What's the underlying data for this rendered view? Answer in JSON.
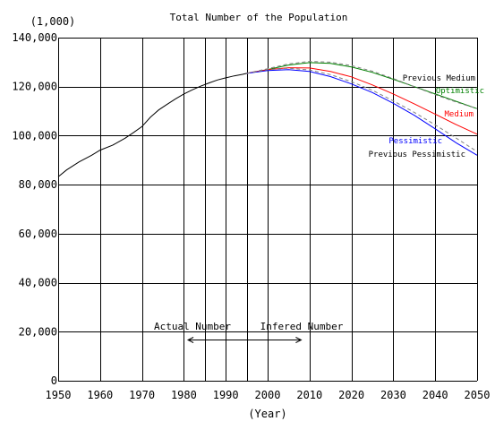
{
  "chart_data": {
    "type": "line",
    "title": "Total Number of the Population",
    "unit_label": "(1,000)",
    "xlabel": "(Year)",
    "ylabel": "",
    "xlim": [
      1950,
      2050
    ],
    "ylim": [
      0,
      140000
    ],
    "x_ticks": [
      1950,
      1960,
      1970,
      1980,
      1990,
      2000,
      2010,
      2020,
      2030,
      2040,
      2050
    ],
    "y_ticks": [
      0,
      20000,
      40000,
      60000,
      80000,
      100000,
      120000,
      140000
    ],
    "y_tick_labels": [
      "0",
      "20,000",
      "40,000",
      "60,000",
      "80,000",
      "100,000",
      "120,000",
      "140,000"
    ],
    "extra_vertical_gridlines": [
      1985,
      1995
    ],
    "grid": true,
    "series": [
      {
        "name": "Actual",
        "color": "#000000",
        "dashed": false,
        "x": [
          1950,
          1952,
          1955,
          1958,
          1960,
          1963,
          1966,
          1968,
          1970,
          1972,
          1974,
          1976,
          1978,
          1980,
          1982,
          1984,
          1986,
          1988,
          1990,
          1992,
          1994,
          1995
        ],
        "y": [
          83200,
          86000,
          89300,
          92000,
          94100,
          96100,
          99000,
          101300,
          103700,
          107500,
          110500,
          112800,
          115000,
          117000,
          118700,
          120200,
          121500,
          122700,
          123600,
          124400,
          125000,
          125400
        ]
      },
      {
        "name": "Optimistic",
        "color": "#008000",
        "dashed": false,
        "x": [
          1995,
          2000,
          2005,
          2010,
          2015,
          2020,
          2025,
          2030,
          2035,
          2040,
          2045,
          2050
        ],
        "y": [
          125400,
          127000,
          128800,
          129800,
          129500,
          128000,
          125800,
          123000,
          120000,
          117000,
          114000,
          111000
        ]
      },
      {
        "name": "Previous Medium",
        "color": "#808080",
        "dashed": true,
        "x": [
          1995,
          2000,
          2005,
          2010,
          2015,
          2020,
          2025,
          2030,
          2035,
          2040,
          2045,
          2050
        ],
        "y": [
          125400,
          127300,
          129300,
          130300,
          130000,
          128600,
          126300,
          123300,
          120000,
          116700,
          113700,
          111000
        ]
      },
      {
        "name": "Medium",
        "color": "#ff0000",
        "dashed": false,
        "x": [
          1995,
          2000,
          2005,
          2010,
          2015,
          2020,
          2025,
          2030,
          2035,
          2040,
          2045,
          2050
        ],
        "y": [
          125400,
          126900,
          127700,
          127600,
          126200,
          124000,
          120700,
          117000,
          113000,
          108800,
          104500,
          100600
        ]
      },
      {
        "name": "Pessimistic",
        "color": "#0000ff",
        "dashed": false,
        "x": [
          1995,
          2000,
          2005,
          2010,
          2015,
          2020,
          2025,
          2030,
          2035,
          2040,
          2045,
          2050
        ],
        "y": [
          125400,
          126600,
          126900,
          126200,
          124100,
          121100,
          117600,
          113200,
          108300,
          102800,
          97100,
          92000
        ]
      },
      {
        "name": "Previous Pessimistic",
        "color": "#808080",
        "dashed": true,
        "x": [
          1995,
          2000,
          2005,
          2010,
          2015,
          2020,
          2025,
          2030,
          2035,
          2040,
          2045,
          2050
        ],
        "y": [
          125400,
          126900,
          127500,
          126800,
          124900,
          122000,
          118500,
          114200,
          109500,
          104400,
          99000,
          93500
        ]
      }
    ],
    "series_labels": [
      {
        "text": "Previous Medium",
        "color": "#000000"
      },
      {
        "text": "Optimistic",
        "color": "#008000"
      },
      {
        "text": "Medium",
        "color": "#ff0000"
      },
      {
        "text": "Pessimistic",
        "color": "#0000ff"
      },
      {
        "text": "Previous Pessimistic",
        "color": "#000000"
      }
    ],
    "annotations": {
      "actual": "Actual Number",
      "inferred": "Infered Number",
      "arrow_range": [
        1981,
        2008
      ]
    }
  }
}
